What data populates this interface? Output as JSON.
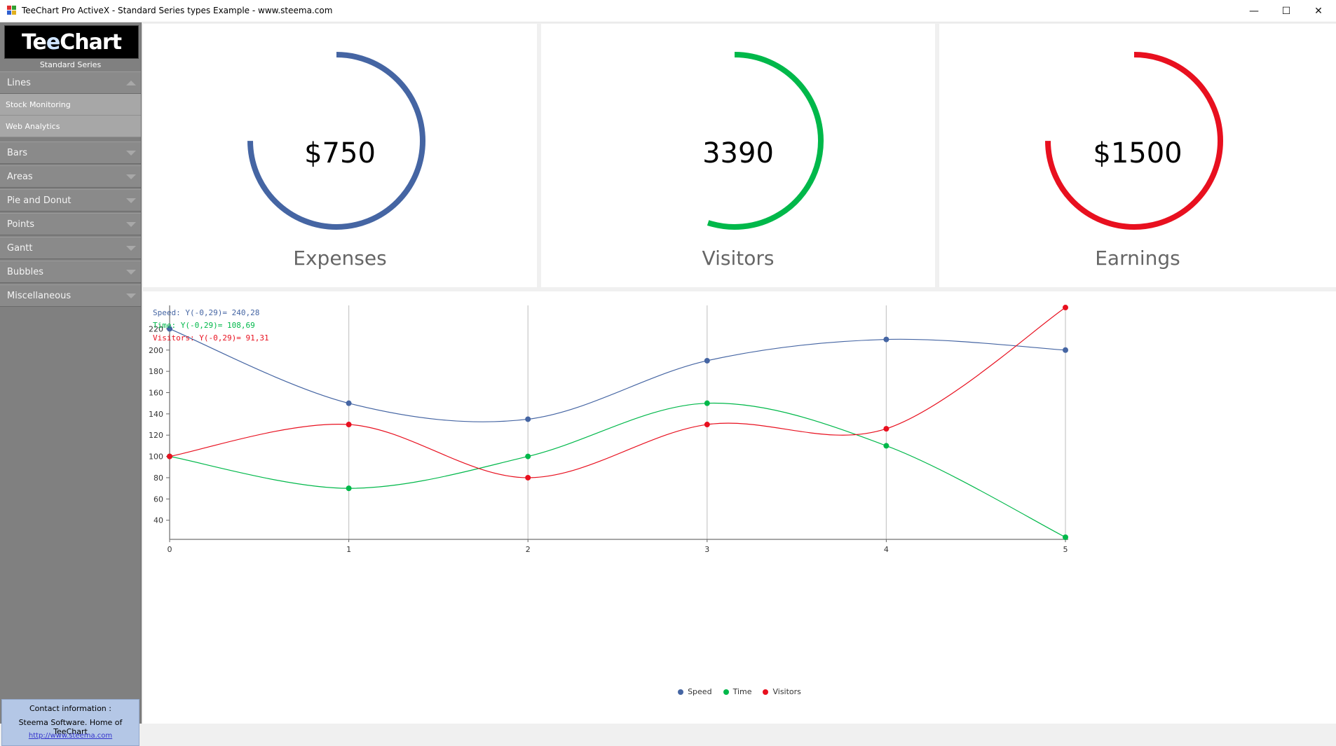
{
  "window": {
    "title": "TeeChart Pro ActiveX - Standard Series types Example - www.steema.com",
    "minimize": "—",
    "maximize": "☐",
    "close": "✕"
  },
  "sidebar": {
    "logo_pre": "Te",
    "logo_ee": "e",
    "logo_post": "Chart",
    "logo_subtitle": "Standard Series",
    "sections": [
      {
        "label": "Lines",
        "expanded": true,
        "items": [
          "Stock Monitoring",
          "Web Analytics"
        ]
      },
      {
        "label": "Bars"
      },
      {
        "label": "Areas"
      },
      {
        "label": "Pie and Donut"
      },
      {
        "label": "Points"
      },
      {
        "label": "Gantt"
      },
      {
        "label": "Bubbles"
      },
      {
        "label": "Miscellaneous"
      }
    ],
    "contact": {
      "heading": "Contact information :",
      "company": "Steema Software. Home of TeeChart",
      "link": "http://www.steema.com"
    }
  },
  "gauges": [
    {
      "value": "$750",
      "label": "Expenses",
      "color": "#4565a3",
      "fraction": 0.75
    },
    {
      "value": "3390",
      "label": "Visitors",
      "color": "#00b84a",
      "fraction": 0.55
    },
    {
      "value": "$1500",
      "label": "Earnings",
      "color": "#e8101f",
      "fraction": 0.75
    }
  ],
  "readouts": [
    {
      "text": "Speed: Y(-0,29)= 240,28",
      "color": "#4565a3"
    },
    {
      "text": "Time: Y(-0,29)= 108,69",
      "color": "#00b84a"
    },
    {
      "text": "Visitors: Y(-0,29)= 91,31",
      "color": "#e8101f"
    }
  ],
  "chart_data": {
    "type": "line",
    "x": [
      0,
      1,
      2,
      3,
      4,
      5
    ],
    "xlim": [
      0,
      5
    ],
    "ylim": [
      22,
      242
    ],
    "yticks": [
      40,
      60,
      80,
      100,
      120,
      140,
      160,
      180,
      200,
      220
    ],
    "grid": "vertical",
    "legend": "bottom",
    "smooth": true,
    "series": [
      {
        "name": "Speed",
        "color": "#4565a3",
        "values": [
          220,
          150,
          135,
          190,
          210,
          200
        ]
      },
      {
        "name": "Time",
        "color": "#00b84a",
        "values": [
          100,
          70,
          100,
          150,
          110,
          24
        ]
      },
      {
        "name": "Visitors",
        "color": "#e8101f",
        "values": [
          100,
          130,
          80,
          130,
          126,
          240
        ]
      }
    ]
  }
}
